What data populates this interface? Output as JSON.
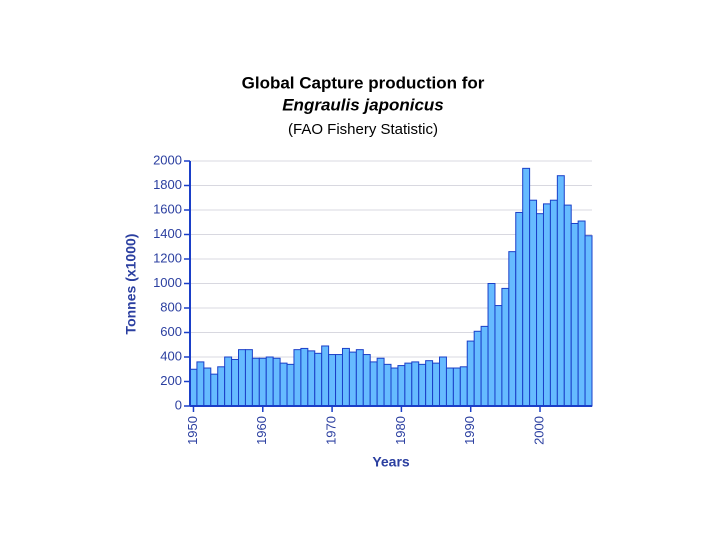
{
  "chart_data": {
    "type": "bar",
    "title": "Global Capture production for",
    "subtitle": "Engraulis japonicus",
    "note": "(FAO Fishery Statistic)",
    "xlabel": "Years",
    "ylabel": "Tonnes (x1000)",
    "x": [
      1950,
      1951,
      1952,
      1953,
      1954,
      1955,
      1956,
      1957,
      1958,
      1959,
      1960,
      1961,
      1962,
      1963,
      1964,
      1965,
      1966,
      1967,
      1968,
      1969,
      1970,
      1971,
      1972,
      1973,
      1974,
      1975,
      1976,
      1977,
      1978,
      1979,
      1980,
      1981,
      1982,
      1983,
      1984,
      1985,
      1986,
      1987,
      1988,
      1989,
      1990,
      1991,
      1992,
      1993,
      1994,
      1995,
      1996,
      1997,
      1998,
      1999,
      2000,
      2001,
      2002,
      2003,
      2004,
      2005,
      2006,
      2007
    ],
    "values": [
      300,
      360,
      310,
      260,
      320,
      400,
      380,
      460,
      460,
      390,
      390,
      400,
      390,
      350,
      340,
      460,
      470,
      450,
      430,
      490,
      420,
      420,
      470,
      440,
      460,
      420,
      360,
      390,
      340,
      310,
      330,
      350,
      360,
      340,
      370,
      350,
      400,
      310,
      310,
      320,
      530,
      610,
      650,
      1000,
      820,
      960,
      1260,
      1580,
      1940,
      1680,
      1570,
      1650,
      1680,
      1880,
      1640,
      1490,
      1510,
      1390
    ],
    "color": "#66bbff",
    "edge_color": "#1a3fc8",
    "xlim": [
      1949.5,
      2007.5
    ],
    "xticks": [
      1950,
      1960,
      1970,
      1980,
      1990,
      2000
    ],
    "ylim": [
      0,
      2000
    ],
    "yticks": [
      0,
      200,
      400,
      600,
      800,
      1000,
      1200,
      1400,
      1600,
      1800,
      2000
    ],
    "grid": true
  }
}
